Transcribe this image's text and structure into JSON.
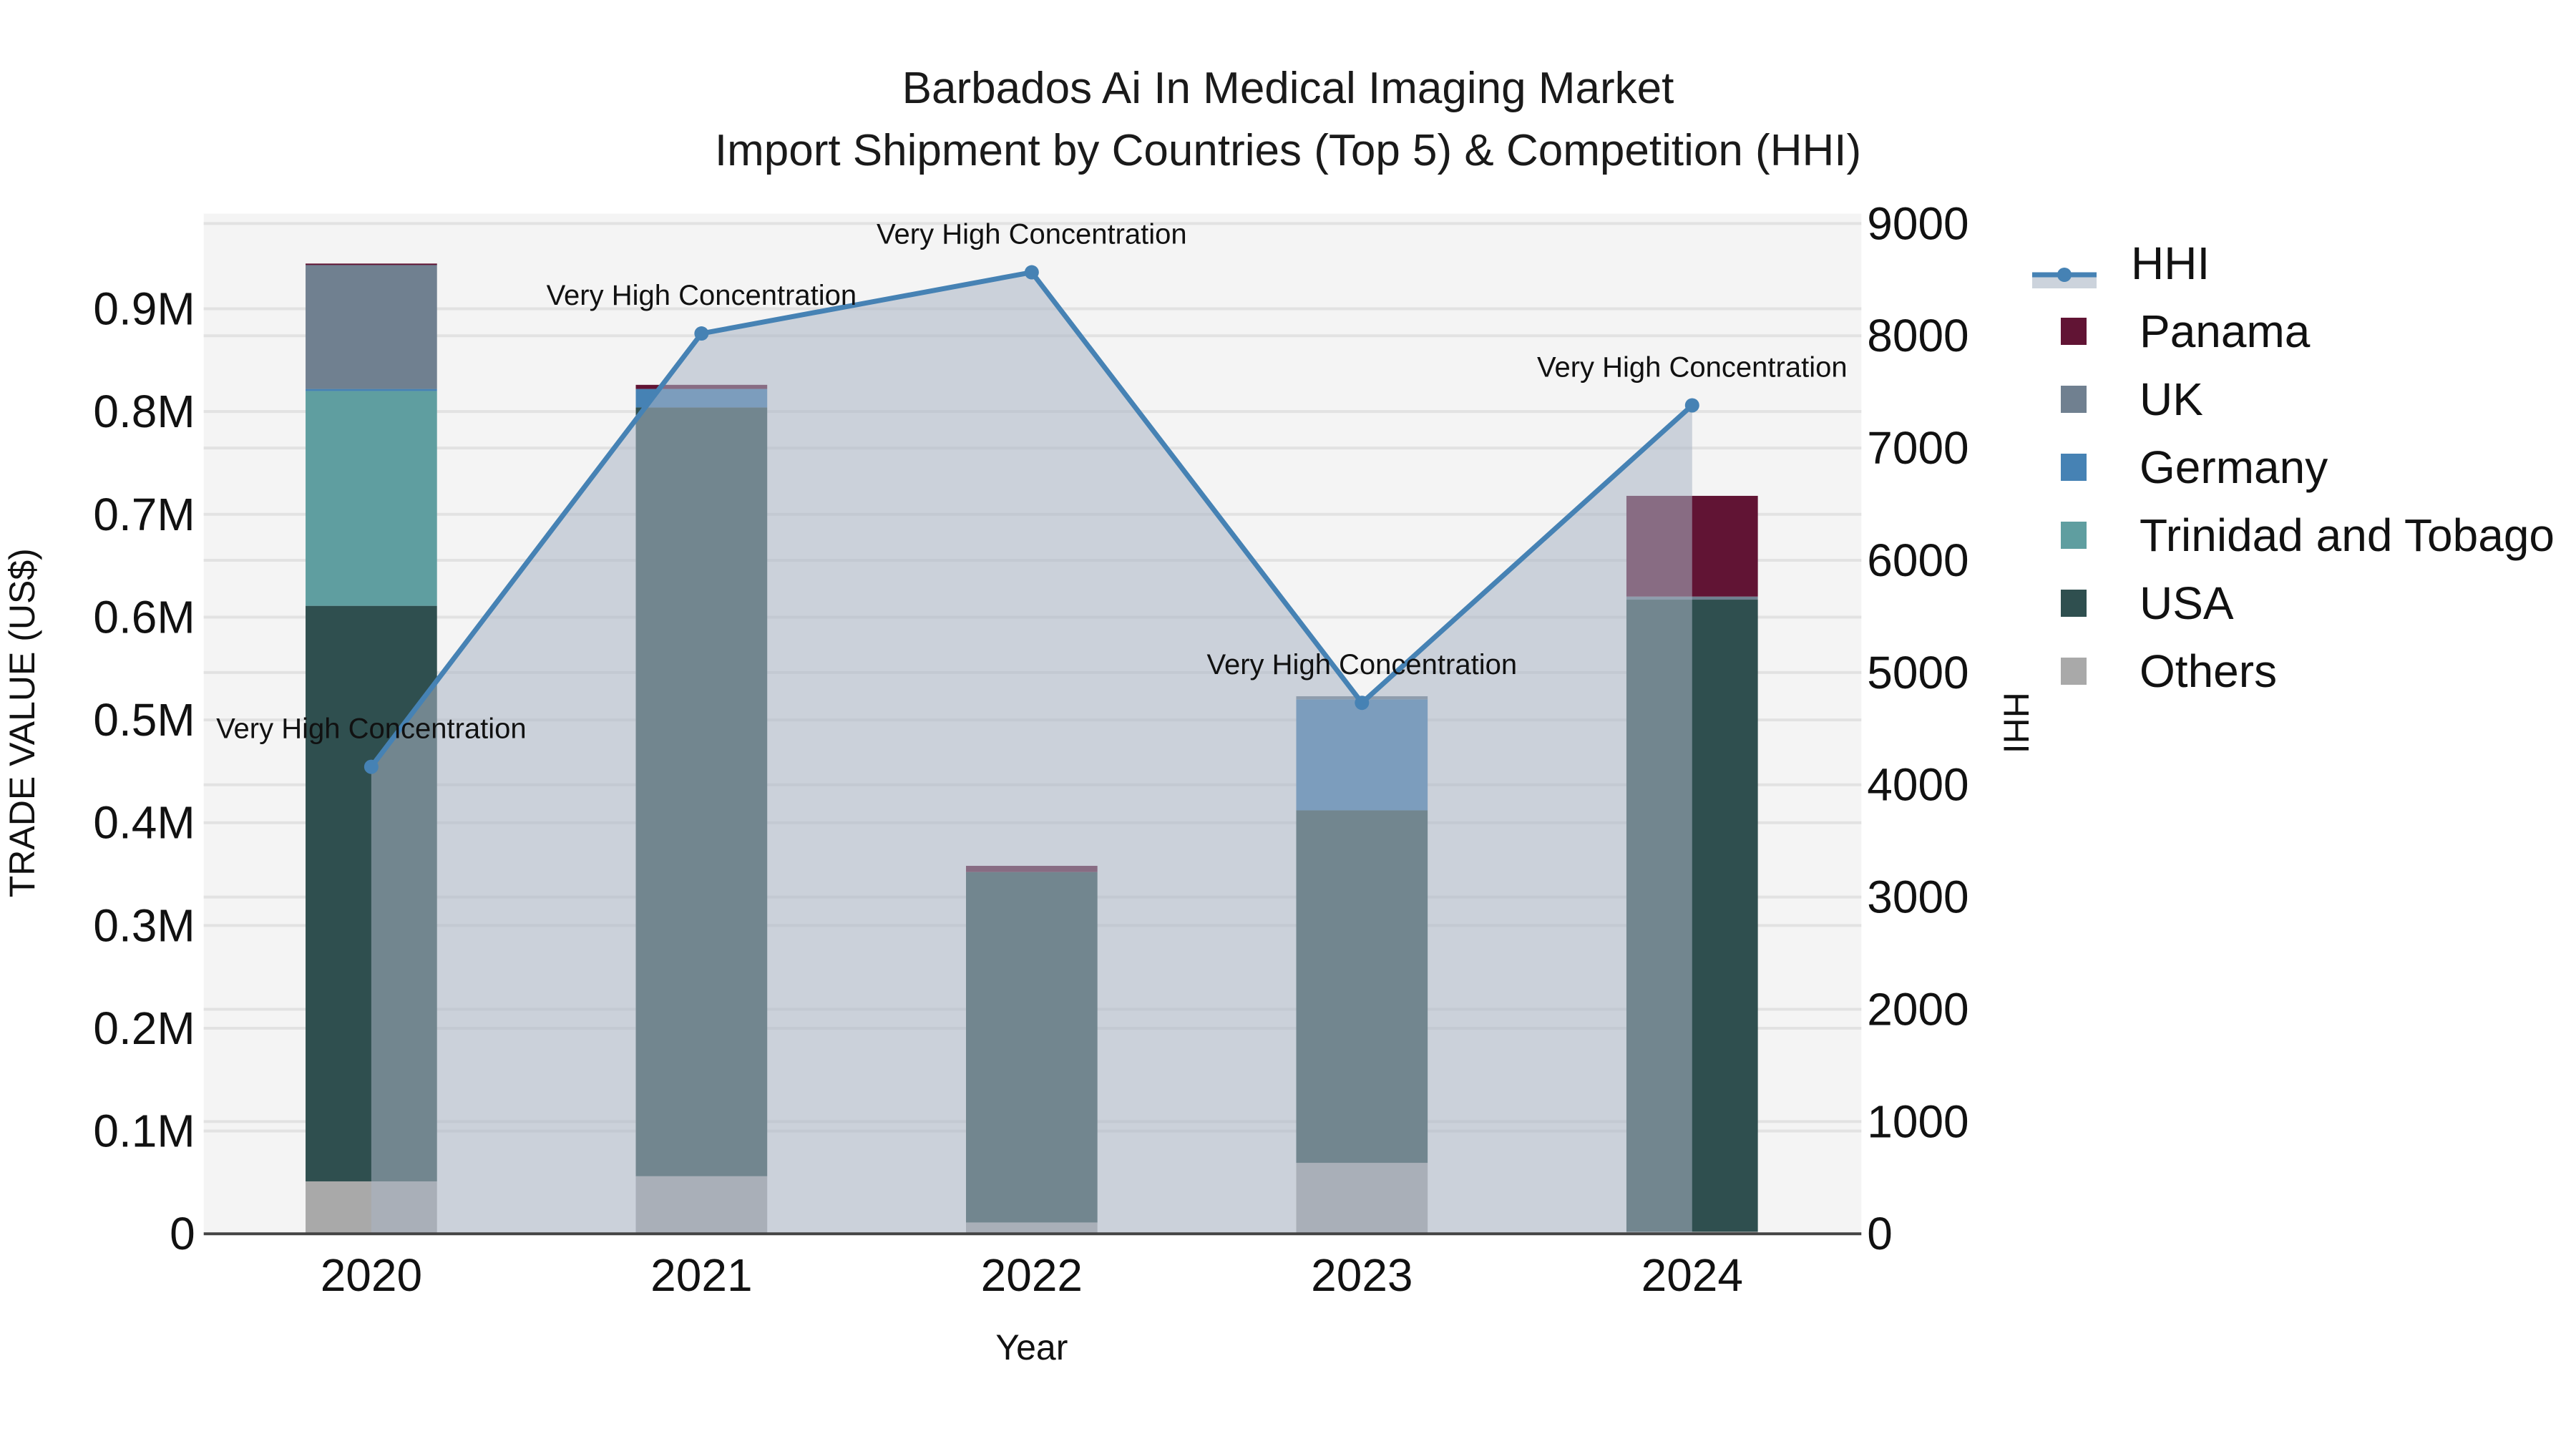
{
  "title": {
    "line1": "Barbados Ai In Medical Imaging Market",
    "line2": "Import Shipment by Countries (Top 5) & Competition (HHI)"
  },
  "axes": {
    "x_label": "Year",
    "y_left_label": "TRADE VALUE (US$)",
    "y_right_label": "HHI",
    "y_left_ticks": [
      "0",
      "0.1M",
      "0.2M",
      "0.3M",
      "0.4M",
      "0.5M",
      "0.6M",
      "0.7M",
      "0.8M",
      "0.9M"
    ],
    "y_right_ticks": [
      "0",
      "1000",
      "2000",
      "3000",
      "4000",
      "5000",
      "6000",
      "7000",
      "8000",
      "9000"
    ]
  },
  "legend": [
    {
      "name": "HHI",
      "color": "#4682b4",
      "type": "line"
    },
    {
      "name": "Panama",
      "color": "#611434",
      "type": "bar"
    },
    {
      "name": "UK",
      "color": "#708090",
      "type": "bar"
    },
    {
      "name": "Germany",
      "color": "#4682b4",
      "type": "bar"
    },
    {
      "name": "Trinidad and Tobago",
      "color": "#5f9ea0",
      "type": "bar"
    },
    {
      "name": "USA",
      "color": "#2f4f4f",
      "type": "bar"
    },
    {
      "name": "Others",
      "color": "#a9a9a9",
      "type": "bar"
    }
  ],
  "chart_data": {
    "type": "bar",
    "stacked": true,
    "title": "Barbados Ai In Medical Imaging Market\nImport Shipment by Countries (Top 5) & Competition (HHI)",
    "xlabel": "Year",
    "ylabel": "TRADE VALUE (US$)",
    "y2label": "HHI",
    "categories": [
      "2020",
      "2021",
      "2022",
      "2023",
      "2024"
    ],
    "ylim": [
      0,
      985000
    ],
    "y2lim": [
      0,
      9000
    ],
    "series": [
      {
        "name": "Others",
        "color": "#a9a9a9",
        "values": [
          51000,
          56000,
          11000,
          69000,
          2000
        ]
      },
      {
        "name": "USA",
        "color": "#2f4f4f",
        "values": [
          560000,
          748000,
          341000,
          343000,
          615000
        ]
      },
      {
        "name": "Trinidad and Tobago",
        "color": "#5f9ea0",
        "values": [
          209000,
          0,
          0,
          0,
          0
        ]
      },
      {
        "name": "Germany",
        "color": "#4682b4",
        "values": [
          2000,
          18000,
          0,
          108000,
          0
        ]
      },
      {
        "name": "UK",
        "color": "#708090",
        "values": [
          121000,
          0,
          0,
          3000,
          3000
        ]
      },
      {
        "name": "Panama",
        "color": "#611434",
        "values": [
          1000,
          4000,
          6000,
          0,
          98000
        ]
      }
    ],
    "line_series": {
      "name": "HHI",
      "axis": "right",
      "color": "#4682b4",
      "fill": "tozeroy",
      "values": [
        4160,
        8020,
        8565,
        4730,
        7380
      ],
      "annotations": [
        "Very High Concentration",
        "Very High Concentration",
        "Very High Concentration",
        "Very High Concentration",
        "Very High Concentration"
      ]
    },
    "grid": true,
    "legend_position": "right"
  }
}
